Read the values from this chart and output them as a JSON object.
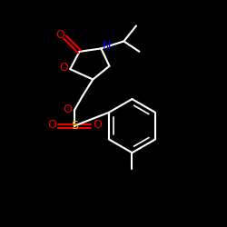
{
  "bg_color": "#000000",
  "bond_color": "#ffffff",
  "N_color": "#0000ee",
  "O_color": "#ee0000",
  "S_color": "#bbbb00",
  "figsize": [
    2.5,
    2.5
  ],
  "dpi": 100,
  "lw": 1.5,
  "fs": 9,
  "xlim": [
    30,
    230
  ],
  "ylim": [
    20,
    240
  ]
}
